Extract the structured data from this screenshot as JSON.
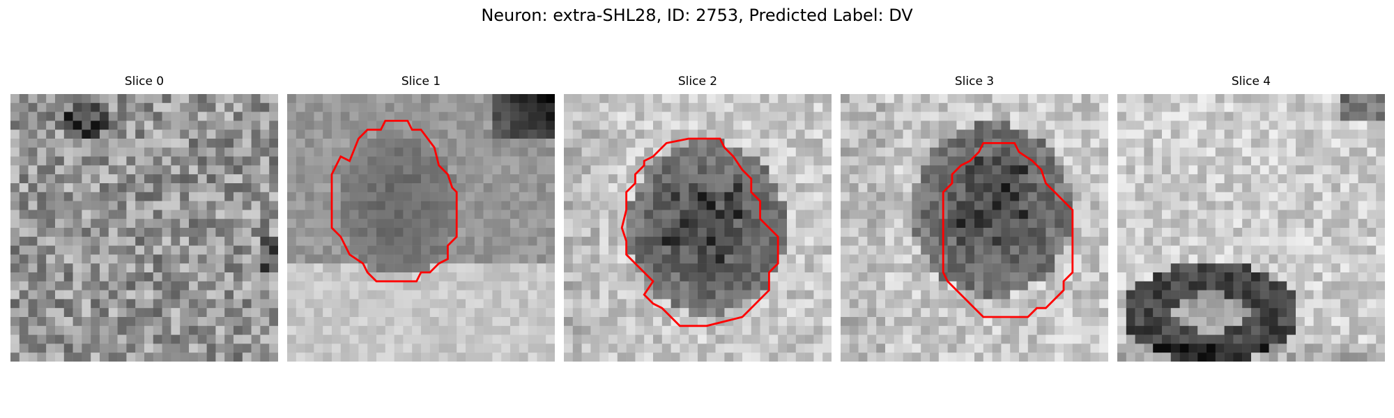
{
  "figure": {
    "suptitle": "Neuron: extra-SHL28, ID: 2753, Predicted Label: DV",
    "contour_color": "#ff0000",
    "colormap": "grayscale",
    "panels": [
      {
        "title": "Slice 0",
        "content": "noisy",
        "has_contour": false
      },
      {
        "title": "Slice 1",
        "content": "dark-blob",
        "has_contour": true
      },
      {
        "title": "Slice 2",
        "content": "dark-cell",
        "has_contour": true
      },
      {
        "title": "Slice 3",
        "content": "dark-cell",
        "has_contour": true
      },
      {
        "title": "Slice 4",
        "content": "dark-ring-bottom",
        "has_contour": false
      }
    ]
  }
}
